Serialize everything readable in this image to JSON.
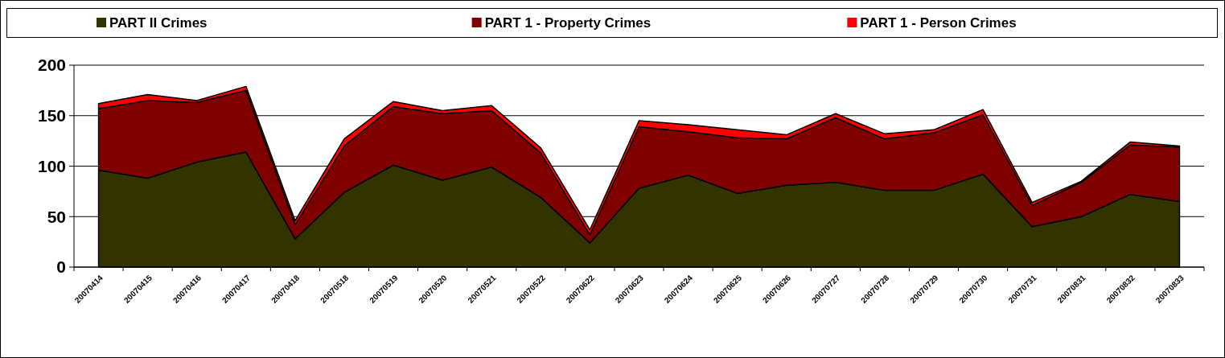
{
  "chart_data": {
    "type": "area",
    "stacked": true,
    "categories": [
      "20070414",
      "20070415",
      "20070416",
      "20070417",
      "20070418",
      "20070518",
      "20070519",
      "20070520",
      "20070521",
      "20070522",
      "20070622",
      "20070623",
      "20070624",
      "20070625",
      "20070626",
      "20070727",
      "20070728",
      "20070729",
      "20070730",
      "20070731",
      "20070831",
      "20070832",
      "20070833"
    ],
    "series": [
      {
        "name": "PART II Crimes",
        "color": "#333300",
        "values": [
          96,
          88,
          104,
          114,
          28,
          74,
          101,
          86,
          99,
          69,
          24,
          78,
          91,
          73,
          81,
          84,
          76,
          76,
          92,
          40,
          50,
          72,
          65
        ]
      },
      {
        "name": "PART 1 - Property Crimes",
        "color": "#800000",
        "values": [
          61,
          77,
          59,
          61,
          14,
          46,
          58,
          66,
          56,
          44,
          8,
          61,
          43,
          55,
          46,
          64,
          51,
          57,
          59,
          21,
          34,
          49,
          54
        ]
      },
      {
        "name": "PART 1 - Person Crimes",
        "color": "#ff0000",
        "values": [
          5,
          6,
          2,
          4,
          4,
          7,
          5,
          3,
          5,
          5,
          5,
          6,
          7,
          8,
          4,
          4,
          5,
          3,
          5,
          3,
          1,
          3,
          1
        ]
      }
    ],
    "ylim": [
      0,
      200
    ],
    "yticks": [
      0,
      50,
      100,
      150,
      200
    ],
    "grid": "y",
    "legend": "top"
  }
}
